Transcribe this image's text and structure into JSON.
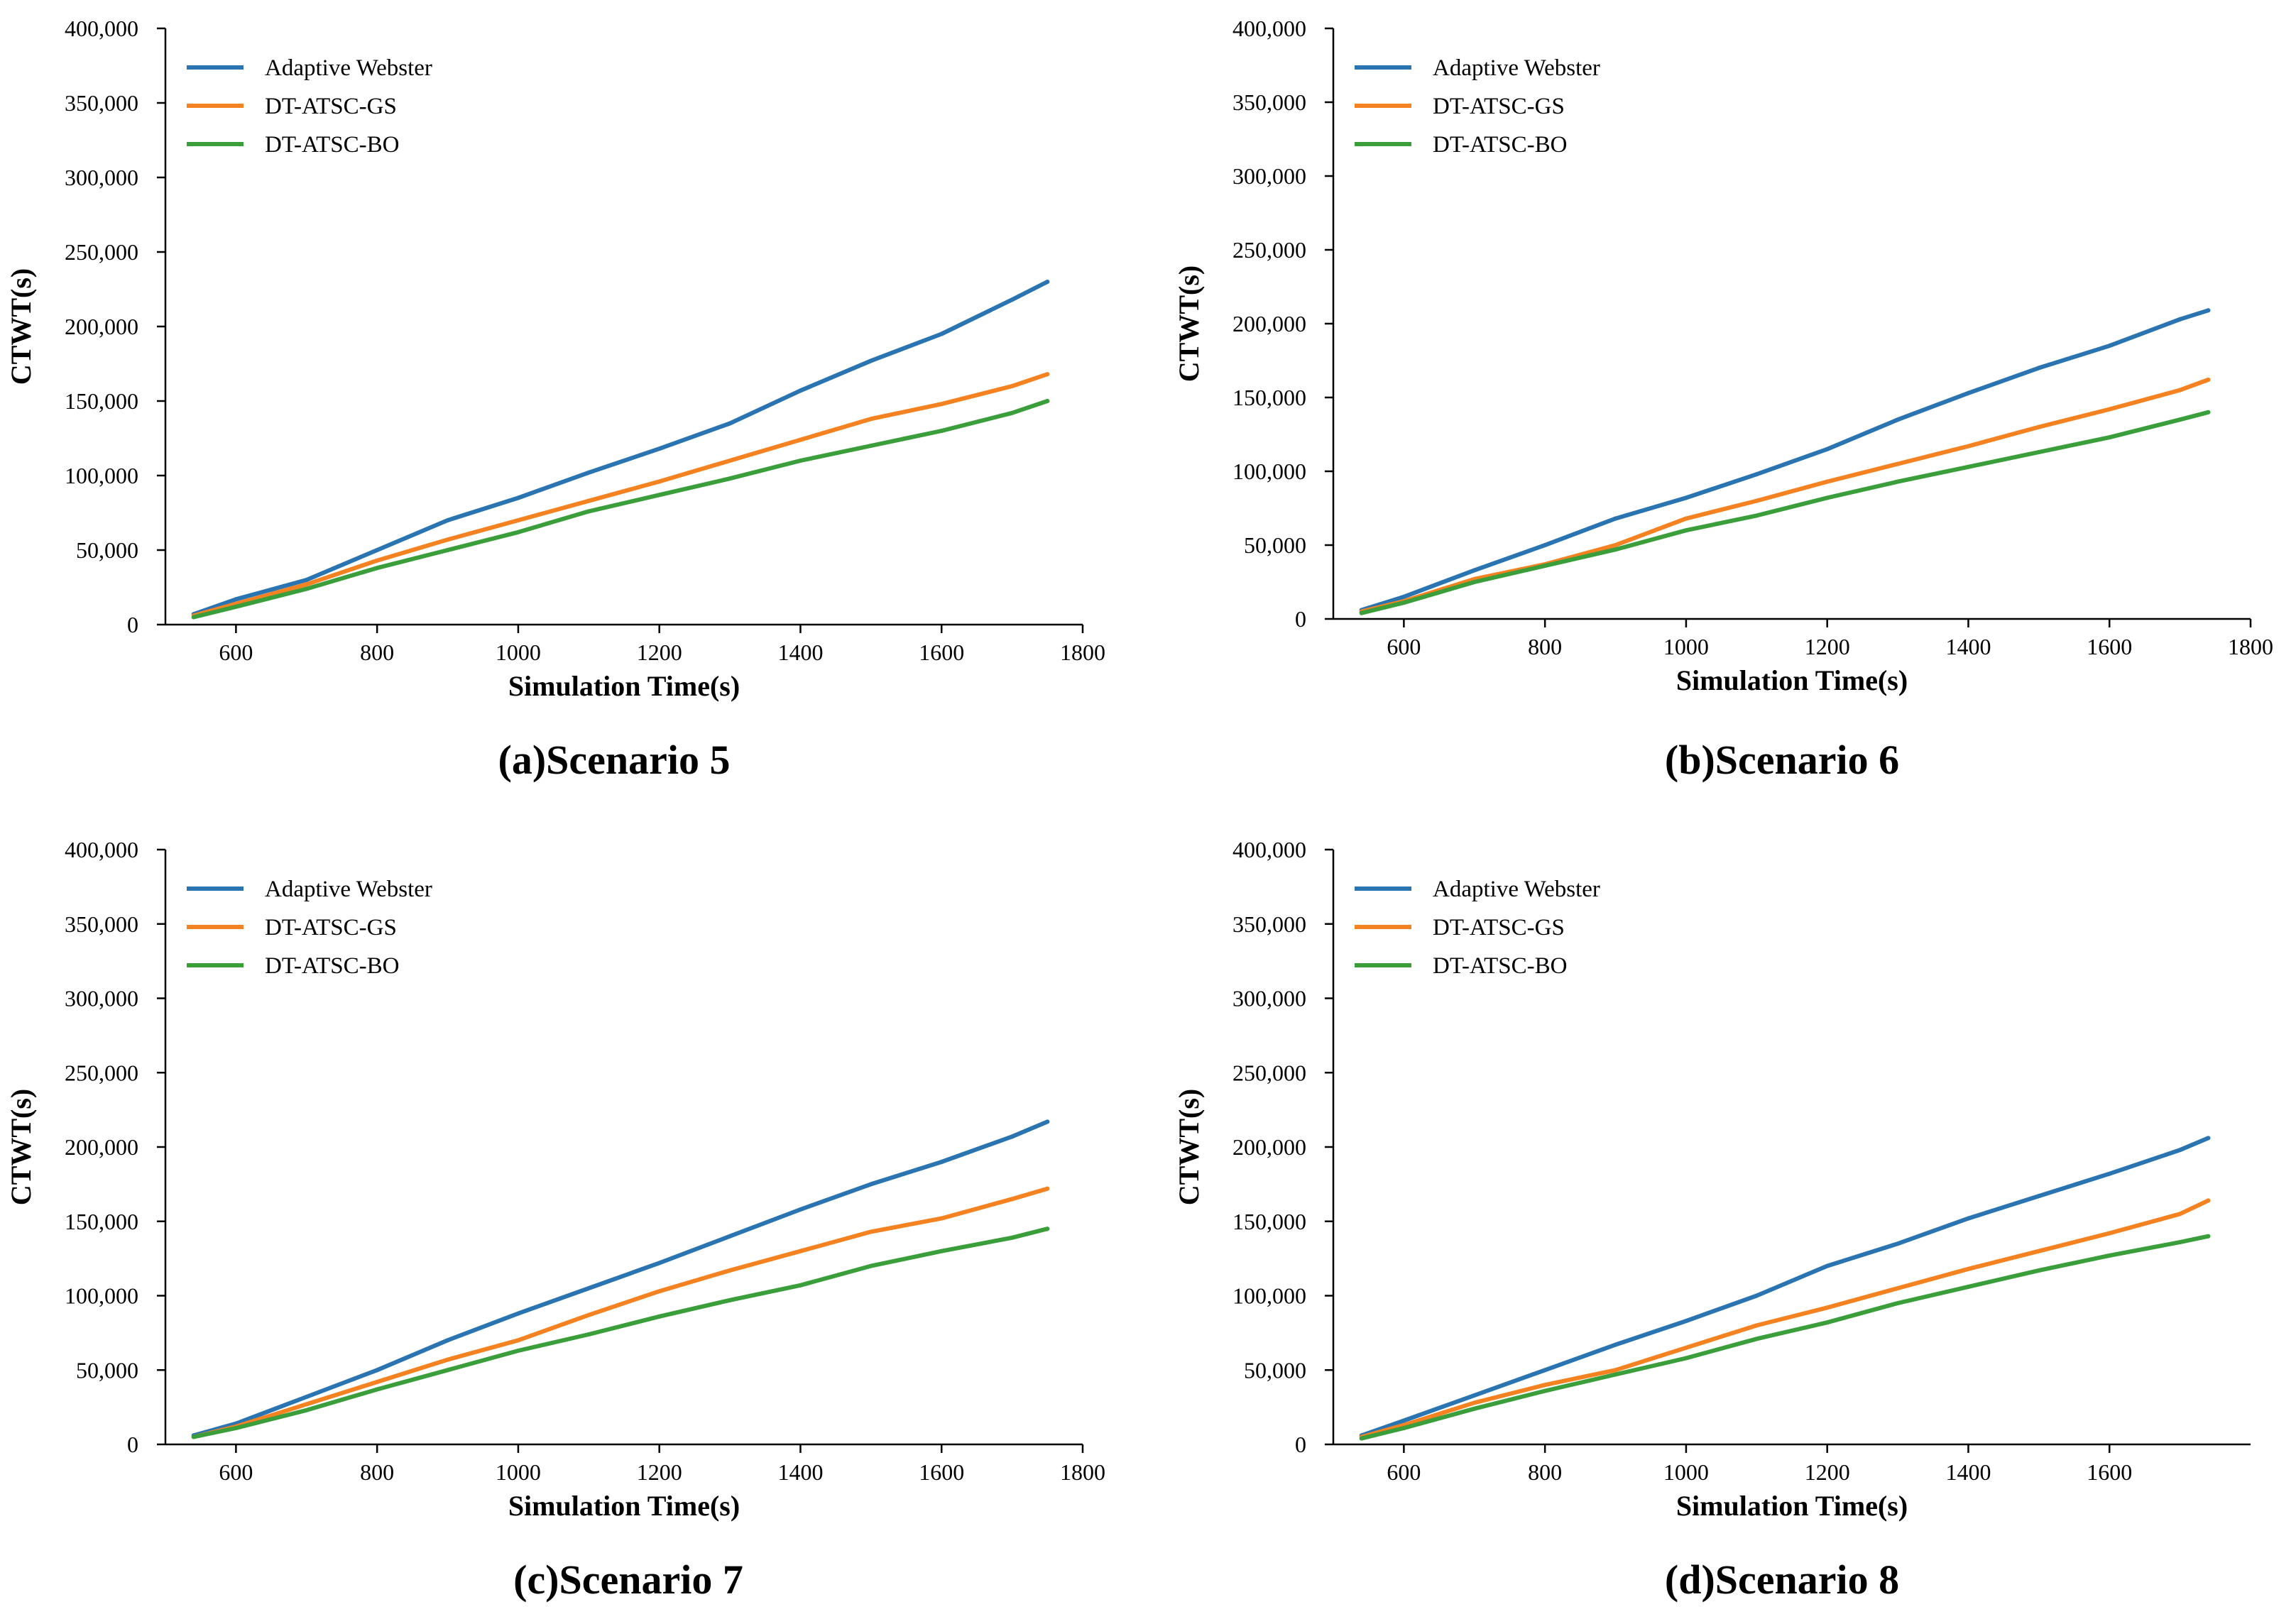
{
  "colors": {
    "adaptive": "#2a75b1",
    "gs": "#f58220",
    "bo": "#3a9f3a"
  },
  "chart_data": [
    {
      "type": "line",
      "caption": "(a)Scenario 5",
      "xlabel": "Simulation Time(s)",
      "ylabel": "CTWT(s)",
      "xlim": [
        500,
        1800
      ],
      "ylim": [
        0,
        400000
      ],
      "xticks": [
        600,
        800,
        1000,
        1200,
        1400,
        1600,
        1800
      ],
      "yticks": [
        0,
        50000,
        100000,
        150000,
        200000,
        250000,
        300000,
        350000,
        400000
      ],
      "ytick_labels": [
        "0",
        "50,000",
        "100,000",
        "150,000",
        "200,000",
        "250,000",
        "300,000",
        "350,000",
        "400,000"
      ],
      "legend": "top-left",
      "x": [
        540,
        600,
        700,
        800,
        900,
        1000,
        1100,
        1200,
        1300,
        1400,
        1500,
        1600,
        1700,
        1750
      ],
      "series": [
        {
          "name": "Adaptive Webster",
          "color_key": "adaptive",
          "values": [
            7000,
            17000,
            30000,
            50000,
            70000,
            85000,
            102000,
            118000,
            135000,
            157000,
            177000,
            195000,
            218000,
            230000
          ]
        },
        {
          "name": "DT-ATSC-GS",
          "color_key": "gs",
          "values": [
            6000,
            14000,
            27000,
            43000,
            57000,
            70000,
            83000,
            96000,
            110000,
            124000,
            138000,
            148000,
            160000,
            168000
          ]
        },
        {
          "name": "DT-ATSC-BO",
          "color_key": "bo",
          "values": [
            5000,
            12000,
            24000,
            38000,
            50000,
            62000,
            76000,
            87000,
            98000,
            110000,
            120000,
            130000,
            142000,
            150000
          ]
        }
      ]
    },
    {
      "type": "line",
      "caption": "(b)Scenario 6",
      "xlabel": "Simulation Time(s)",
      "ylabel": "CTWT(s)",
      "xlim": [
        500,
        1800
      ],
      "ylim": [
        0,
        400000
      ],
      "xticks": [
        600,
        800,
        1000,
        1200,
        1400,
        1600,
        1800
      ],
      "yticks": [
        0,
        50000,
        100000,
        150000,
        200000,
        250000,
        300000,
        350000,
        400000
      ],
      "ytick_labels": [
        "0",
        "50,000",
        "100,000",
        "150,000",
        "200,000",
        "250,000",
        "300,000",
        "350,000",
        "400,000"
      ],
      "legend": "top-left",
      "x": [
        540,
        600,
        700,
        800,
        900,
        1000,
        1100,
        1200,
        1300,
        1400,
        1500,
        1600,
        1700,
        1740
      ],
      "series": [
        {
          "name": "Adaptive Webster",
          "color_key": "adaptive",
          "values": [
            6000,
            15000,
            33000,
            50000,
            68000,
            82000,
            98000,
            115000,
            135000,
            153000,
            170000,
            185000,
            203000,
            209000
          ]
        },
        {
          "name": "DT-ATSC-GS",
          "color_key": "gs",
          "values": [
            5000,
            12000,
            27000,
            37000,
            50000,
            68000,
            80000,
            93000,
            105000,
            117000,
            130000,
            142000,
            155000,
            162000
          ]
        },
        {
          "name": "DT-ATSC-BO",
          "color_key": "bo",
          "values": [
            4000,
            11000,
            25000,
            36000,
            47000,
            60000,
            70000,
            82000,
            93000,
            103000,
            113000,
            123000,
            135000,
            140000
          ]
        }
      ]
    },
    {
      "type": "line",
      "caption": "(c)Scenario 7",
      "xlabel": "Simulation Time(s)",
      "ylabel": "CTWT(s)",
      "xlim": [
        500,
        1800
      ],
      "ylim": [
        0,
        400000
      ],
      "xticks": [
        600,
        800,
        1000,
        1200,
        1400,
        1600,
        1800
      ],
      "yticks": [
        0,
        50000,
        100000,
        150000,
        200000,
        250000,
        300000,
        350000,
        400000
      ],
      "ytick_labels": [
        "0",
        "50,000",
        "100,000",
        "150,000",
        "200,000",
        "250,000",
        "300,000",
        "350,000",
        "400,000"
      ],
      "legend": "top-left",
      "x": [
        540,
        600,
        700,
        800,
        900,
        1000,
        1100,
        1200,
        1300,
        1400,
        1500,
        1600,
        1700,
        1750
      ],
      "series": [
        {
          "name": "Adaptive Webster",
          "color_key": "adaptive",
          "values": [
            6000,
            14000,
            32000,
            50000,
            70000,
            88000,
            105000,
            122000,
            140000,
            158000,
            175000,
            190000,
            207000,
            217000
          ]
        },
        {
          "name": "DT-ATSC-GS",
          "color_key": "gs",
          "values": [
            5000,
            12000,
            27000,
            42000,
            57000,
            70000,
            87000,
            103000,
            117000,
            130000,
            143000,
            152000,
            165000,
            172000
          ]
        },
        {
          "name": "DT-ATSC-BO",
          "color_key": "bo",
          "values": [
            5000,
            11000,
            23000,
            37000,
            50000,
            63000,
            74000,
            86000,
            97000,
            107000,
            120000,
            130000,
            139000,
            145000
          ]
        }
      ]
    },
    {
      "type": "line",
      "caption": "(d)Scenario 8",
      "xlabel": "Simulation Time(s)",
      "ylabel": "CTWT(s)",
      "xlim": [
        500,
        1800
      ],
      "ylim": [
        0,
        400000
      ],
      "xticks": [
        600,
        800,
        1000,
        1200,
        1400,
        1600
      ],
      "yticks": [
        0,
        50000,
        100000,
        150000,
        200000,
        250000,
        300000,
        350000,
        400000
      ],
      "ytick_labels": [
        "0",
        "50,000",
        "100,000",
        "150,000",
        "200,000",
        "250,000",
        "300,000",
        "350,000",
        "400,000"
      ],
      "legend": "top-left",
      "x": [
        540,
        600,
        700,
        800,
        900,
        1000,
        1100,
        1200,
        1300,
        1400,
        1500,
        1600,
        1700,
        1740
      ],
      "series": [
        {
          "name": "Adaptive Webster",
          "color_key": "adaptive",
          "values": [
            6000,
            16000,
            33000,
            50000,
            67000,
            83000,
            100000,
            120000,
            135000,
            152000,
            167000,
            182000,
            198000,
            206000
          ]
        },
        {
          "name": "DT-ATSC-GS",
          "color_key": "gs",
          "values": [
            5000,
            13000,
            28000,
            40000,
            50000,
            65000,
            80000,
            92000,
            105000,
            118000,
            130000,
            142000,
            155000,
            164000
          ]
        },
        {
          "name": "DT-ATSC-BO",
          "color_key": "bo",
          "values": [
            4000,
            11000,
            24000,
            36000,
            47000,
            58000,
            71000,
            82000,
            95000,
            106000,
            117000,
            127000,
            136000,
            140000
          ]
        }
      ]
    }
  ]
}
